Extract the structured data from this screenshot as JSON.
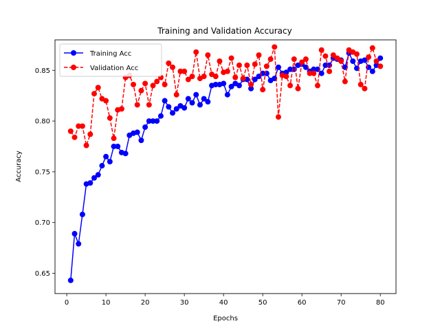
{
  "chart_data": {
    "type": "line",
    "title": "Training and Validation Accuracy",
    "xlabel": "Epochs",
    "ylabel": "Accuracy",
    "xlim": [
      -3,
      84
    ],
    "ylim": [
      0.63,
      0.88
    ],
    "xticks": [
      0,
      10,
      20,
      30,
      40,
      50,
      60,
      70,
      80
    ],
    "yticks": [
      0.65,
      0.7,
      0.75,
      0.8,
      0.85
    ],
    "ytick_labels": [
      "0.65",
      "0.70",
      "0.75",
      "0.80",
      "0.85"
    ],
    "grid": false,
    "legend_position": "top-left",
    "x": [
      1,
      2,
      3,
      4,
      5,
      6,
      7,
      8,
      9,
      10,
      11,
      12,
      13,
      14,
      15,
      16,
      17,
      18,
      19,
      20,
      21,
      22,
      23,
      24,
      25,
      26,
      27,
      28,
      29,
      30,
      31,
      32,
      33,
      34,
      35,
      36,
      37,
      38,
      39,
      40,
      41,
      42,
      43,
      44,
      45,
      46,
      47,
      48,
      49,
      50,
      51,
      52,
      53,
      54,
      55,
      56,
      57,
      58,
      59,
      60,
      61,
      62,
      63,
      64,
      65,
      66,
      67,
      68,
      69,
      70,
      71,
      72,
      73,
      74,
      75,
      76,
      77,
      78,
      79,
      80
    ],
    "series": [
      {
        "name": "Training Acc",
        "color": "#0000ff",
        "linestyle": "solid",
        "values": [
          0.643,
          0.689,
          0.679,
          0.708,
          0.738,
          0.739,
          0.744,
          0.747,
          0.756,
          0.765,
          0.76,
          0.775,
          0.775,
          0.769,
          0.768,
          0.786,
          0.788,
          0.789,
          0.781,
          0.794,
          0.8,
          0.8,
          0.8,
          0.805,
          0.82,
          0.814,
          0.808,
          0.812,
          0.815,
          0.813,
          0.822,
          0.818,
          0.826,
          0.816,
          0.822,
          0.819,
          0.835,
          0.836,
          0.836,
          0.837,
          0.826,
          0.834,
          0.837,
          0.835,
          0.841,
          0.841,
          0.832,
          0.841,
          0.844,
          0.847,
          0.847,
          0.84,
          0.842,
          0.853,
          0.847,
          0.848,
          0.851,
          0.851,
          0.855,
          0.856,
          0.853,
          0.849,
          0.851,
          0.851,
          0.847,
          0.855,
          0.855,
          0.862,
          0.861,
          0.86,
          0.853,
          0.867,
          0.859,
          0.852,
          0.859,
          0.86,
          0.853,
          0.849,
          0.855,
          0.862
        ]
      },
      {
        "name": "Validation Acc",
        "color": "#ff0000",
        "linestyle": "dashed",
        "values": [
          0.79,
          0.784,
          0.795,
          0.795,
          0.776,
          0.787,
          0.827,
          0.833,
          0.822,
          0.82,
          0.803,
          0.783,
          0.811,
          0.812,
          0.843,
          0.845,
          0.836,
          0.816,
          0.83,
          0.837,
          0.816,
          0.835,
          0.839,
          0.843,
          0.836,
          0.857,
          0.853,
          0.826,
          0.849,
          0.849,
          0.841,
          0.844,
          0.868,
          0.842,
          0.844,
          0.865,
          0.846,
          0.844,
          0.859,
          0.848,
          0.849,
          0.862,
          0.843,
          0.855,
          0.842,
          0.855,
          0.836,
          0.856,
          0.865,
          0.831,
          0.854,
          0.861,
          0.873,
          0.804,
          0.845,
          0.844,
          0.835,
          0.861,
          0.832,
          0.858,
          0.861,
          0.847,
          0.847,
          0.835,
          0.87,
          0.864,
          0.849,
          0.865,
          0.862,
          0.859,
          0.839,
          0.87,
          0.868,
          0.866,
          0.836,
          0.832,
          0.863,
          0.872,
          0.859,
          0.854
        ]
      }
    ]
  }
}
